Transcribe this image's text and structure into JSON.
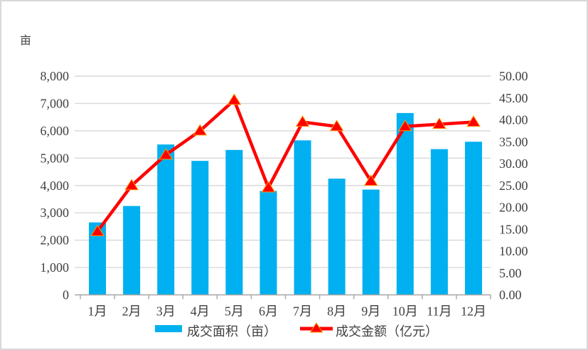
{
  "chart_data": {
    "type": "bar",
    "subtype": "combo-bar-line-dual-axis",
    "unit_left": "亩",
    "categories": [
      "1月",
      "2月",
      "3月",
      "4月",
      "5月",
      "6月",
      "7月",
      "8月",
      "9月",
      "10月",
      "11月",
      "12月"
    ],
    "series": [
      {
        "name": "成交面积（亩）",
        "type": "bar",
        "axis": "left",
        "color": "#00B0F0",
        "values": [
          2650,
          3250,
          5500,
          4900,
          5300,
          3800,
          5650,
          4250,
          3850,
          6650,
          5330,
          5600
        ]
      },
      {
        "name": "成交金额（亿元）",
        "type": "line",
        "axis": "right",
        "color": "#FF0000",
        "marker": "triangle-up",
        "marker_edge_color": "#FF9900",
        "values": [
          14.5,
          25.0,
          32.0,
          37.5,
          44.5,
          24.5,
          39.5,
          38.5,
          26.0,
          38.5,
          39.0,
          39.5
        ]
      }
    ],
    "left_axis": {
      "min": 0,
      "max": 8000,
      "step": 1000,
      "ticks": [
        "0",
        "1,000",
        "2,000",
        "3,000",
        "4,000",
        "5,000",
        "6,000",
        "7,000",
        "8,000"
      ]
    },
    "right_axis": {
      "min": 0,
      "max": 50,
      "step": 5,
      "ticks": [
        "0.00",
        "5.00",
        "10.00",
        "15.00",
        "20.00",
        "25.00",
        "30.00",
        "35.00",
        "40.00",
        "45.00",
        "50.00"
      ]
    },
    "grid": true,
    "legend_position": "bottom",
    "colors": {
      "grid": "#D9D9D9",
      "axis_line": "#A6A6A6",
      "text": "#3F3F3F",
      "background": "#FFFFFF",
      "frame_border": "#D8D8D8"
    }
  }
}
